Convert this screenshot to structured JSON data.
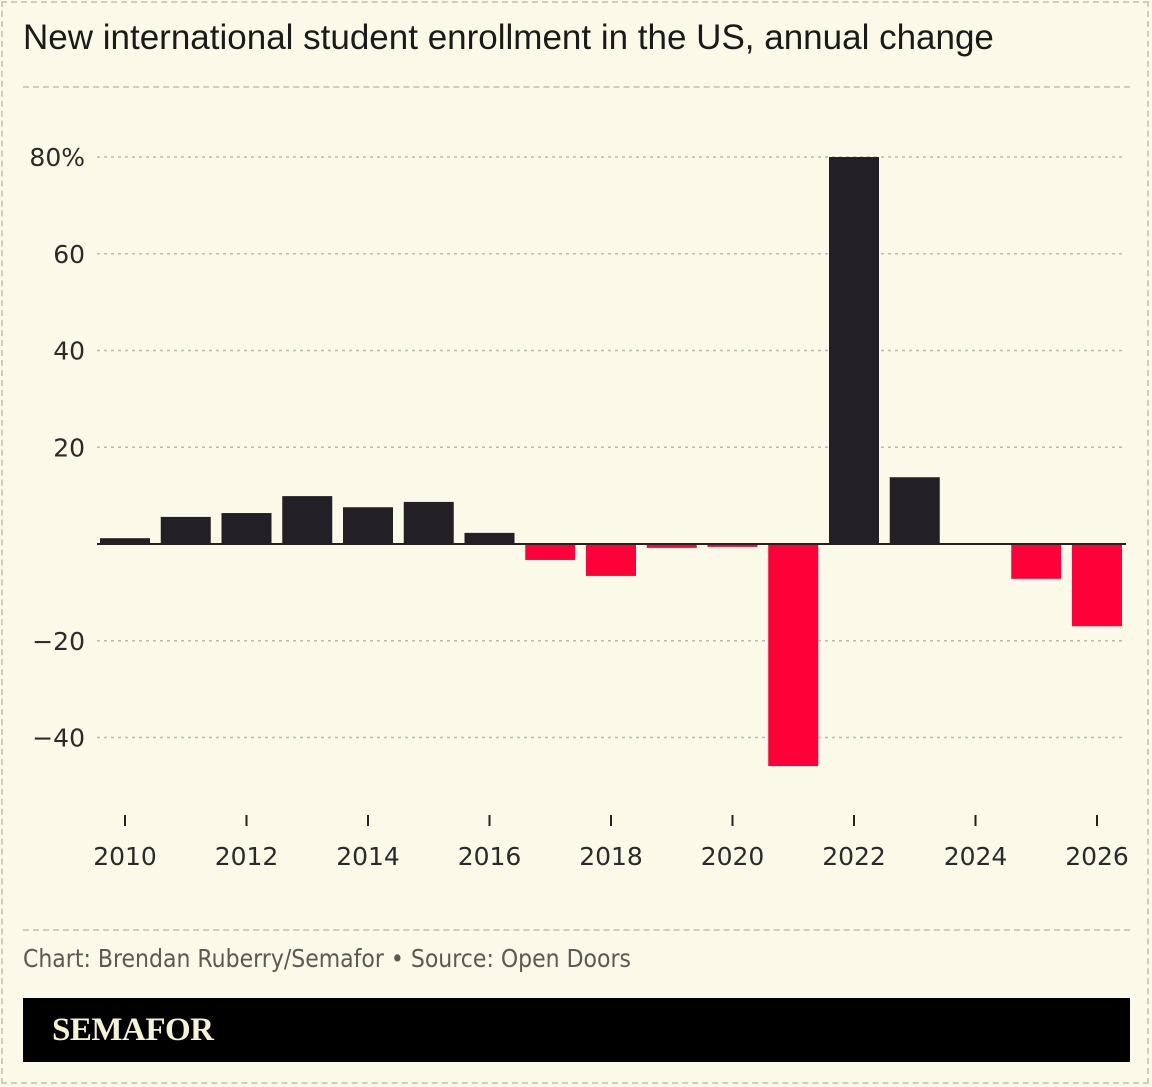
{
  "title": "New international student enrollment in the US, annual change",
  "credit": "Chart: Brendan Ruberry/Semafor • Source: Open Doors",
  "brand": "SEMAFOR",
  "colors": {
    "positive": "#231f26",
    "negative": "#ff0038",
    "background": "#fbf9e7"
  },
  "chart_data": {
    "type": "bar",
    "title": "New international student enrollment in the US, annual change",
    "categories": [
      2010,
      2011,
      2012,
      2013,
      2014,
      2015,
      2016,
      2017,
      2018,
      2019,
      2020,
      2021,
      2022,
      2023,
      2024,
      2025,
      2026
    ],
    "values": [
      1.2,
      5.6,
      6.4,
      9.9,
      7.6,
      8.7,
      2.3,
      -3.3,
      -6.6,
      -0.8,
      -0.6,
      -45.9,
      80,
      13.8,
      0,
      -7.2,
      -17.0
    ],
    "ylim": [
      -50,
      80
    ],
    "yticks": [
      80,
      60,
      40,
      20,
      -20,
      -40
    ],
    "ytick_labels": [
      "80%",
      "60",
      "40",
      "20",
      "−20",
      "−40"
    ],
    "xticks": [
      2010,
      2012,
      2014,
      2016,
      2018,
      2020,
      2022,
      2024,
      2026
    ],
    "xtick_labels": [
      "2010",
      "2012",
      "2014",
      "2016",
      "2018",
      "2020",
      "2022",
      "2024",
      "2026"
    ],
    "grid": true
  }
}
